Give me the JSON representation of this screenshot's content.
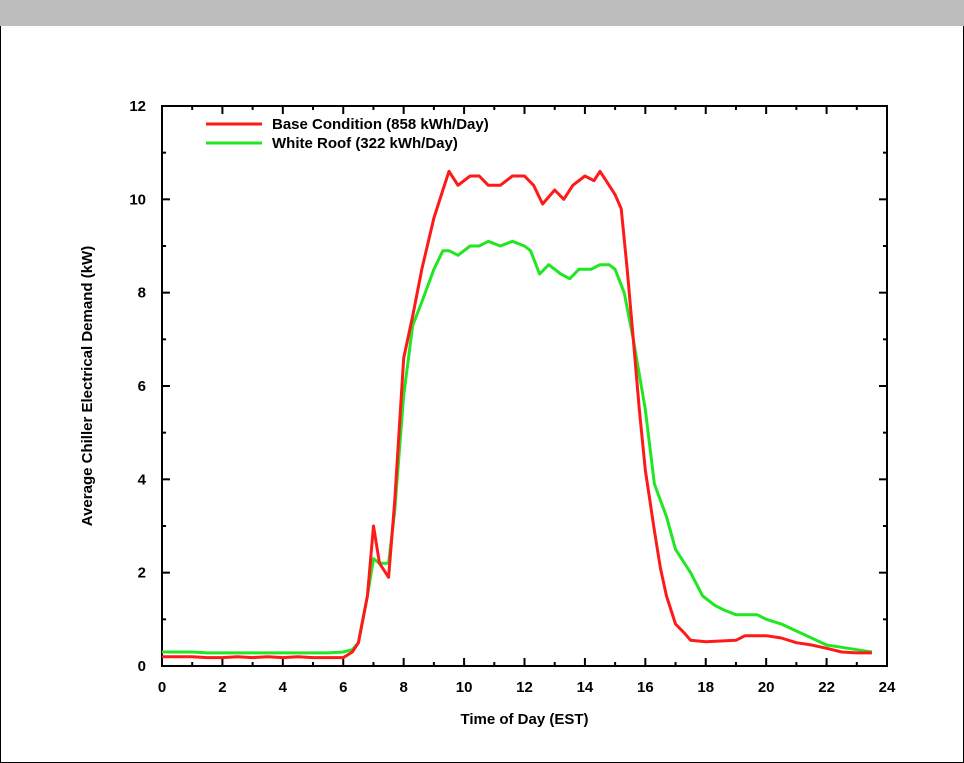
{
  "chart_data": {
    "type": "line",
    "xlabel": "Time of Day (EST)",
    "ylabel": "Average Chiller Electrical Demand (kW)",
    "xlim": [
      0,
      24
    ],
    "ylim": [
      0,
      12
    ],
    "xticks": [
      0,
      2,
      4,
      6,
      8,
      10,
      12,
      14,
      16,
      18,
      20,
      22,
      24
    ],
    "xtick_labels": [
      "0",
      "2",
      "4",
      "6",
      "8",
      "10",
      "12",
      "14",
      "16",
      "18",
      "20",
      "22",
      "24"
    ],
    "yticks": [
      0,
      2,
      4,
      6,
      8,
      10,
      12
    ],
    "ytick_labels": [
      "0",
      "2",
      "4",
      "6",
      "8",
      "10",
      "12"
    ],
    "grid": false,
    "legend_position": "top-left",
    "series": [
      {
        "name": "Base Condition (858 kWh/Day)",
        "color": "#ff1a1a",
        "x": [
          0,
          0.5,
          1,
          1.5,
          2,
          2.5,
          3,
          3.5,
          4,
          4.5,
          5,
          5.5,
          6,
          6.3,
          6.5,
          6.8,
          7.0,
          7.2,
          7.5,
          7.7,
          8.0,
          8.3,
          8.6,
          9.0,
          9.3,
          9.5,
          9.8,
          10.2,
          10.5,
          10.8,
          11.2,
          11.6,
          12.0,
          12.3,
          12.6,
          13.0,
          13.3,
          13.6,
          14.0,
          14.3,
          14.5,
          14.8,
          15.0,
          15.2,
          15.4,
          15.6,
          15.8,
          16.0,
          16.3,
          16.5,
          16.7,
          17.0,
          17.3,
          17.5,
          18.0,
          19.0,
          19.3,
          20.0,
          20.5,
          21.0,
          21.5,
          22.0,
          22.5,
          23.0,
          23.5
        ],
        "y": [
          0.2,
          0.2,
          0.2,
          0.18,
          0.18,
          0.2,
          0.18,
          0.2,
          0.18,
          0.2,
          0.18,
          0.18,
          0.18,
          0.3,
          0.5,
          1.5,
          3.0,
          2.2,
          1.9,
          3.5,
          6.6,
          7.5,
          8.5,
          9.6,
          10.2,
          10.6,
          10.3,
          10.5,
          10.5,
          10.3,
          10.3,
          10.5,
          10.5,
          10.3,
          9.9,
          10.2,
          10.0,
          10.3,
          10.5,
          10.4,
          10.6,
          10.3,
          10.1,
          9.8,
          8.5,
          7.0,
          5.5,
          4.2,
          2.9,
          2.1,
          1.5,
          0.9,
          0.7,
          0.55,
          0.52,
          0.55,
          0.65,
          0.65,
          0.6,
          0.5,
          0.45,
          0.38,
          0.3,
          0.28,
          0.28
        ]
      },
      {
        "name": "White Roof (322 kWh/Day)",
        "color": "#22e622",
        "x": [
          0,
          0.5,
          1,
          1.5,
          2,
          2.5,
          3,
          3.5,
          4,
          4.5,
          5,
          5.5,
          6,
          6.3,
          6.5,
          6.8,
          7.0,
          7.2,
          7.5,
          7.7,
          8.0,
          8.3,
          8.6,
          9.0,
          9.3,
          9.5,
          9.8,
          10.2,
          10.5,
          10.8,
          11.2,
          11.6,
          12.0,
          12.2,
          12.5,
          12.8,
          13.2,
          13.5,
          13.8,
          14.2,
          14.5,
          14.8,
          15.0,
          15.3,
          15.6,
          16.0,
          16.3,
          16.7,
          17.0,
          17.5,
          17.9,
          18.3,
          18.6,
          19.0,
          19.3,
          19.7,
          20.0,
          20.5,
          21.0,
          21.5,
          22.0,
          22.5,
          23.0,
          23.5
        ],
        "y": [
          0.3,
          0.3,
          0.3,
          0.28,
          0.28,
          0.28,
          0.28,
          0.28,
          0.28,
          0.28,
          0.28,
          0.28,
          0.3,
          0.35,
          0.5,
          1.5,
          2.3,
          2.2,
          2.2,
          3.3,
          5.8,
          7.3,
          7.8,
          8.5,
          8.9,
          8.9,
          8.8,
          9.0,
          9.0,
          9.1,
          9.0,
          9.1,
          9.0,
          8.9,
          8.4,
          8.6,
          8.4,
          8.3,
          8.5,
          8.5,
          8.6,
          8.6,
          8.5,
          8.0,
          7.0,
          5.5,
          3.9,
          3.2,
          2.5,
          2.0,
          1.5,
          1.3,
          1.2,
          1.1,
          1.1,
          1.1,
          1.0,
          0.9,
          0.75,
          0.6,
          0.45,
          0.4,
          0.35,
          0.3
        ]
      }
    ]
  }
}
